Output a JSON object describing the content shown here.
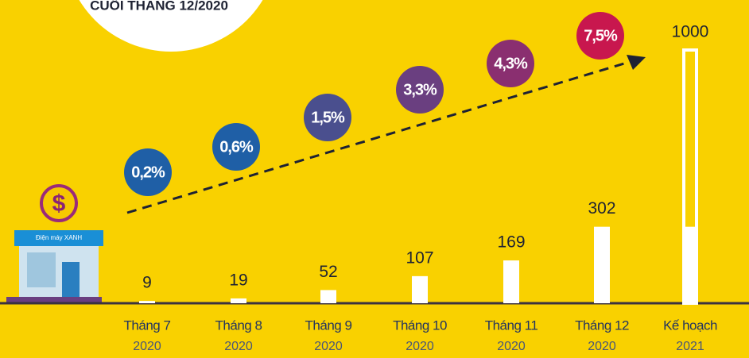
{
  "chart_data": {
    "type": "bar",
    "title": "CUỐI THÁNG 12/2020",
    "categories": [
      "Tháng 7",
      "Tháng 8",
      "Tháng 9",
      "Tháng 10",
      "Tháng 11",
      "Tháng 12",
      "Kế hoạch"
    ],
    "category_years": [
      "2020",
      "2020",
      "2020",
      "2020",
      "2020",
      "2020",
      "2021"
    ],
    "values": [
      9,
      19,
      52,
      107,
      169,
      302,
      1000
    ],
    "ylim": [
      0,
      1000
    ],
    "color": "#ffffff",
    "share": {
      "values": [
        0.2,
        0.6,
        1.5,
        3.3,
        4.3,
        7.5
      ],
      "value_labels": [
        "0,2%",
        "0,6%",
        "1,5%",
        "3,3%",
        "4,3%",
        "7,5%"
      ],
      "colors": [
        "#1f5fa6",
        "#1f5fa6",
        "#4a4f8e",
        "#6a3f80",
        "#8a2f70",
        "#c8174e"
      ]
    },
    "store_sign": "Điện máy XANH"
  }
}
